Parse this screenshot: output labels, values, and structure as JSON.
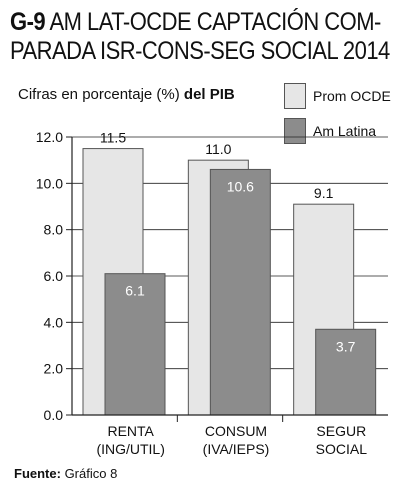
{
  "header": {
    "code": "G-9",
    "title_line1": "AM LAT-OCDE CAPTACIÓN COM-",
    "title_line2": "PARADA ISR-CONS-SEG SOCIAL 2014",
    "subtitle_part1": "Cifras en porcentaje (%) ",
    "subtitle_part2": "del PIB"
  },
  "source": {
    "label": "Fuente:",
    "text": " Gráfico 8"
  },
  "colors": {
    "series_light": "#e6e6e6",
    "series_dark": "#8c8c8c",
    "bar_stroke": "#555555",
    "axis": "#222222",
    "grid": "#222222"
  },
  "chart_data": {
    "type": "bar",
    "categories": [
      {
        "line1": "RENTA",
        "line2": "(ING/UTIL)"
      },
      {
        "line1": "CONSUM",
        "line2": "(IVA/IEPS)"
      },
      {
        "line1": "SEGUR",
        "line2": "SOCIAL"
      }
    ],
    "series": [
      {
        "name": "Prom OCDE",
        "values": [
          11.5,
          11.0,
          9.1
        ],
        "labels": [
          "11.5",
          "11.0",
          "9.1"
        ]
      },
      {
        "name": "Am Latina",
        "values": [
          6.1,
          10.6,
          3.7
        ],
        "labels": [
          "6.1",
          "10.6",
          "3.7"
        ]
      }
    ],
    "y_ticks": [
      "0.0",
      "2.0",
      "4.0",
      "6.0",
      "8.0",
      "10.0",
      "12.0"
    ],
    "ylim": [
      0,
      12
    ],
    "grid": true,
    "legend_position": "top-right"
  }
}
